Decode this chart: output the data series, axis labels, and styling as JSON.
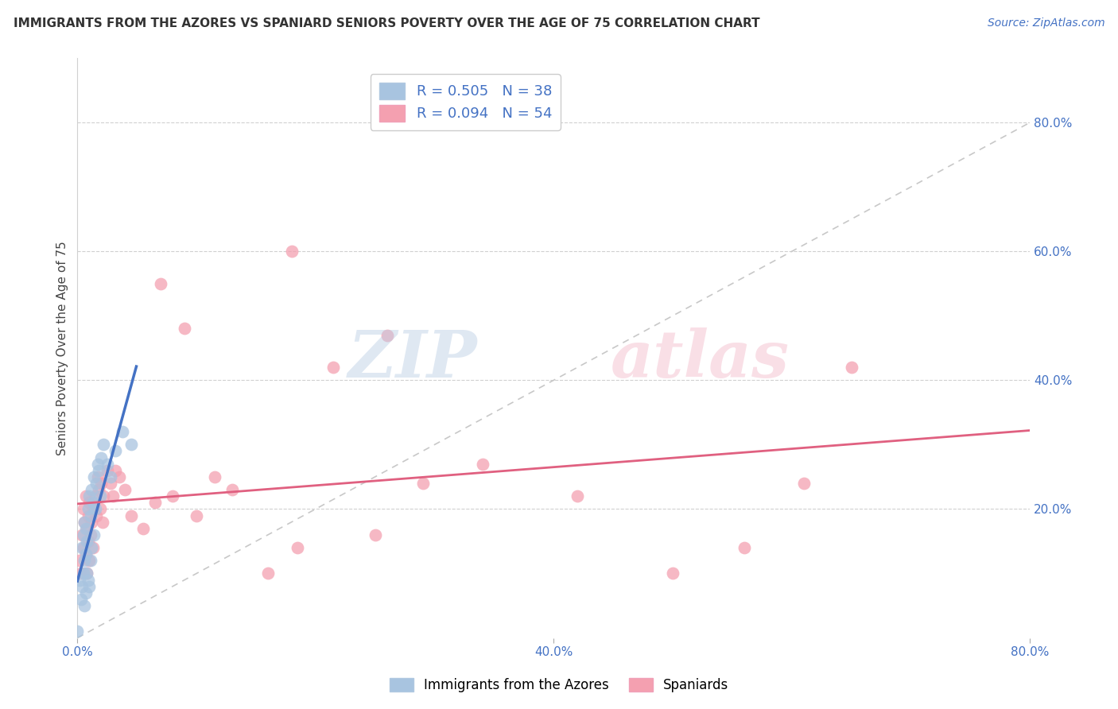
{
  "title": "IMMIGRANTS FROM THE AZORES VS SPANIARD SENIORS POVERTY OVER THE AGE OF 75 CORRELATION CHART",
  "source": "Source: ZipAtlas.com",
  "ylabel": "Seniors Poverty Over the Age of 75",
  "xlim": [
    0.0,
    0.8
  ],
  "ylim": [
    0.0,
    0.9
  ],
  "azores_color": "#a8c4e0",
  "spaniards_color": "#f4a0b0",
  "azores_line_color": "#4472c4",
  "spaniards_line_color": "#e06080",
  "diagonal_color": "#c8c8c8",
  "azores_x": [
    0.0,
    0.002,
    0.003,
    0.004,
    0.004,
    0.005,
    0.005,
    0.006,
    0.006,
    0.006,
    0.007,
    0.007,
    0.007,
    0.008,
    0.008,
    0.009,
    0.009,
    0.01,
    0.01,
    0.011,
    0.011,
    0.012,
    0.012,
    0.013,
    0.014,
    0.014,
    0.015,
    0.016,
    0.017,
    0.018,
    0.019,
    0.02,
    0.022,
    0.025,
    0.028,
    0.032,
    0.038,
    0.045
  ],
  "azores_y": [
    0.01,
    0.09,
    0.06,
    0.14,
    0.08,
    0.1,
    0.16,
    0.05,
    0.12,
    0.18,
    0.07,
    0.13,
    0.17,
    0.1,
    0.15,
    0.09,
    0.2,
    0.08,
    0.22,
    0.12,
    0.19,
    0.14,
    0.23,
    0.21,
    0.16,
    0.25,
    0.2,
    0.24,
    0.27,
    0.26,
    0.22,
    0.28,
    0.3,
    0.27,
    0.25,
    0.29,
    0.32,
    0.3
  ],
  "spaniards_x": [
    0.002,
    0.003,
    0.004,
    0.005,
    0.005,
    0.006,
    0.007,
    0.007,
    0.008,
    0.008,
    0.009,
    0.009,
    0.01,
    0.01,
    0.011,
    0.012,
    0.013,
    0.014,
    0.015,
    0.016,
    0.017,
    0.018,
    0.019,
    0.02,
    0.021,
    0.022,
    0.025,
    0.028,
    0.03,
    0.032,
    0.035,
    0.04,
    0.045,
    0.055,
    0.065,
    0.08,
    0.1,
    0.115,
    0.13,
    0.16,
    0.185,
    0.215,
    0.25,
    0.29,
    0.34,
    0.42,
    0.5,
    0.56,
    0.61,
    0.65,
    0.09,
    0.07,
    0.18,
    0.26
  ],
  "spaniards_y": [
    0.12,
    0.1,
    0.16,
    0.14,
    0.2,
    0.18,
    0.13,
    0.22,
    0.1,
    0.17,
    0.15,
    0.19,
    0.12,
    0.21,
    0.16,
    0.18,
    0.14,
    0.2,
    0.22,
    0.19,
    0.25,
    0.23,
    0.2,
    0.24,
    0.18,
    0.22,
    0.26,
    0.24,
    0.22,
    0.26,
    0.25,
    0.23,
    0.19,
    0.17,
    0.21,
    0.22,
    0.19,
    0.25,
    0.23,
    0.1,
    0.14,
    0.42,
    0.16,
    0.24,
    0.27,
    0.22,
    0.1,
    0.14,
    0.24,
    0.42,
    0.48,
    0.55,
    0.6,
    0.47
  ],
  "azores_R": 0.505,
  "azores_N": 38,
  "spaniards_R": 0.094,
  "spaniards_N": 54
}
